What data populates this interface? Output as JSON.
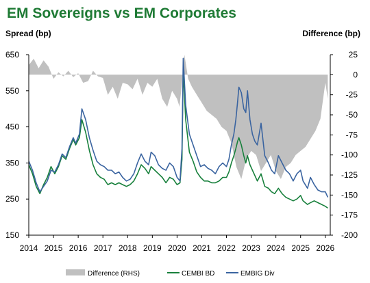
{
  "chart_data": {
    "type": "line",
    "title": "EM Sovereigns vs EM Corporates",
    "ylabel_left": "Spread (bp)",
    "ylabel_right": "Difference (bp)",
    "xlim": [
      2014,
      2026.2
    ],
    "ylim_left": [
      150,
      650
    ],
    "ylim_right": [
      -200,
      25
    ],
    "x_ticks": [
      "2014",
      "2015",
      "2016",
      "2017",
      "2018",
      "2019",
      "2020",
      "2021",
      "2022",
      "2023",
      "2024",
      "2025",
      "2026"
    ],
    "y_ticks_left": [
      "150",
      "250",
      "350",
      "450",
      "550",
      "650"
    ],
    "y_ticks_right": [
      "-200",
      "-175",
      "-150",
      "-125",
      "-100",
      "-75",
      "-50",
      "-25",
      "0",
      "25"
    ],
    "legend": [
      "Difference (RHS)",
      "CEMBI BD",
      "EMBIG Div"
    ],
    "legend_position": "bottom",
    "colors": {
      "title": "#1e7a34",
      "difference": "#c0c0c0",
      "cembi": "#18803c",
      "embig": "#3a64a0"
    },
    "series": [
      {
        "name": "EMBIG Div",
        "axis": "left",
        "x": [
          2014.0,
          2014.15,
          2014.3,
          2014.45,
          2014.6,
          2014.75,
          2014.9,
          2015.05,
          2015.2,
          2015.35,
          2015.5,
          2015.65,
          2015.8,
          2015.9,
          2016.05,
          2016.15,
          2016.3,
          2016.45,
          2016.6,
          2016.75,
          2016.9,
          2017.05,
          2017.2,
          2017.35,
          2017.5,
          2017.65,
          2017.8,
          2017.95,
          2018.1,
          2018.25,
          2018.4,
          2018.55,
          2018.7,
          2018.85,
          2018.95,
          2019.1,
          2019.25,
          2019.4,
          2019.55,
          2019.7,
          2019.85,
          2020.0,
          2020.12,
          2020.2,
          2020.25,
          2020.35,
          2020.5,
          2020.65,
          2020.8,
          2020.95,
          2021.1,
          2021.25,
          2021.4,
          2021.55,
          2021.7,
          2021.85,
          2022.0,
          2022.1,
          2022.2,
          2022.3,
          2022.38,
          2022.45,
          2022.5,
          2022.6,
          2022.7,
          2022.78,
          2022.85,
          2022.95,
          2023.05,
          2023.15,
          2023.25,
          2023.4,
          2023.55,
          2023.7,
          2023.82,
          2023.95,
          2024.1,
          2024.25,
          2024.4,
          2024.55,
          2024.7,
          2024.85,
          2025.0,
          2025.1,
          2025.28,
          2025.4,
          2025.55,
          2025.7,
          2025.85,
          2026.0,
          2026.1
        ],
        "values": [
          355,
          330,
          295,
          270,
          285,
          300,
          330,
          325,
          345,
          375,
          365,
          395,
          420,
          405,
          430,
          500,
          470,
          420,
          385,
          355,
          345,
          340,
          330,
          330,
          320,
          325,
          310,
          300,
          305,
          320,
          350,
          375,
          355,
          345,
          380,
          370,
          345,
          335,
          330,
          350,
          340,
          310,
          300,
          390,
          640,
          510,
          430,
          400,
          370,
          340,
          345,
          335,
          330,
          320,
          340,
          350,
          340,
          360,
          400,
          430,
          470,
          520,
          560,
          545,
          500,
          490,
          550,
          470,
          430,
          410,
          400,
          460,
          370,
          350,
          330,
          320,
          370,
          350,
          330,
          320,
          300,
          320,
          330,
          300,
          280,
          310,
          290,
          275,
          270,
          270,
          255
        ]
      },
      {
        "name": "CEMBI BD",
        "axis": "left",
        "x": [
          2014.0,
          2014.15,
          2014.3,
          2014.45,
          2014.6,
          2014.75,
          2014.9,
          2015.05,
          2015.2,
          2015.35,
          2015.5,
          2015.65,
          2015.8,
          2015.9,
          2016.05,
          2016.15,
          2016.3,
          2016.45,
          2016.6,
          2016.75,
          2016.9,
          2017.05,
          2017.2,
          2017.35,
          2017.5,
          2017.65,
          2017.8,
          2017.95,
          2018.1,
          2018.25,
          2018.4,
          2018.55,
          2018.7,
          2018.85,
          2018.95,
          2019.1,
          2019.25,
          2019.4,
          2019.55,
          2019.7,
          2019.85,
          2020.0,
          2020.12,
          2020.2,
          2020.25,
          2020.35,
          2020.5,
          2020.65,
          2020.8,
          2020.95,
          2021.1,
          2021.25,
          2021.4,
          2021.55,
          2021.7,
          2021.85,
          2022.0,
          2022.1,
          2022.2,
          2022.3,
          2022.38,
          2022.45,
          2022.5,
          2022.6,
          2022.7,
          2022.78,
          2022.85,
          2022.95,
          2023.05,
          2023.15,
          2023.25,
          2023.4,
          2023.55,
          2023.7,
          2023.82,
          2023.95,
          2024.1,
          2024.25,
          2024.4,
          2024.55,
          2024.7,
          2024.85,
          2025.0,
          2025.1,
          2025.28,
          2025.4,
          2025.55,
          2025.7,
          2025.85,
          2026.0,
          2026.1
        ],
        "values": [
          345,
          320,
          285,
          265,
          290,
          310,
          340,
          320,
          340,
          370,
          360,
          390,
          415,
          400,
          420,
          470,
          435,
          385,
          345,
          320,
          310,
          305,
          290,
          295,
          290,
          295,
          290,
          285,
          290,
          300,
          320,
          345,
          335,
          320,
          340,
          330,
          320,
          310,
          295,
          310,
          305,
          290,
          295,
          360,
          610,
          470,
          380,
          355,
          325,
          310,
          300,
          300,
          295,
          295,
          300,
          310,
          310,
          325,
          350,
          370,
          390,
          410,
          420,
          400,
          370,
          350,
          370,
          345,
          330,
          315,
          300,
          320,
          285,
          280,
          270,
          265,
          280,
          265,
          255,
          250,
          245,
          250,
          260,
          245,
          235,
          240,
          245,
          240,
          235,
          230,
          225
        ]
      },
      {
        "name": "Difference (RHS)",
        "axis": "right",
        "x": [
          2014.0,
          2014.2,
          2014.4,
          2014.6,
          2014.8,
          2015.0,
          2015.2,
          2015.4,
          2015.6,
          2015.8,
          2016.0,
          2016.2,
          2016.4,
          2016.6,
          2016.8,
          2017.0,
          2017.2,
          2017.4,
          2017.6,
          2017.8,
          2018.0,
          2018.2,
          2018.4,
          2018.6,
          2018.8,
          2019.0,
          2019.2,
          2019.4,
          2019.6,
          2019.8,
          2020.0,
          2020.1,
          2020.2,
          2020.3,
          2020.45,
          2020.6,
          2020.8,
          2021.0,
          2021.2,
          2021.4,
          2021.6,
          2021.8,
          2022.0,
          2022.2,
          2022.4,
          2022.6,
          2022.8,
          2023.0,
          2023.2,
          2023.4,
          2023.6,
          2023.8,
          2024.0,
          2024.2,
          2024.4,
          2024.6,
          2024.8,
          2025.0,
          2025.2,
          2025.4,
          2025.6,
          2025.8,
          2026.0,
          2026.1
        ],
        "values": [
          12,
          20,
          8,
          18,
          10,
          -5,
          3,
          -2,
          5,
          -3,
          2,
          -10,
          -8,
          5,
          -2,
          -4,
          -25,
          -15,
          -30,
          -10,
          -12,
          -18,
          -5,
          -25,
          -10,
          -15,
          -5,
          -30,
          -40,
          -20,
          -30,
          -40,
          -10,
          25,
          -5,
          -15,
          -25,
          -35,
          -45,
          -50,
          -55,
          -65,
          -70,
          -85,
          -115,
          -130,
          -105,
          -95,
          -100,
          -120,
          -110,
          -100,
          -120,
          -130,
          -115,
          -110,
          -100,
          -95,
          -90,
          -80,
          -70,
          -55,
          -10,
          -30
        ]
      }
    ]
  }
}
